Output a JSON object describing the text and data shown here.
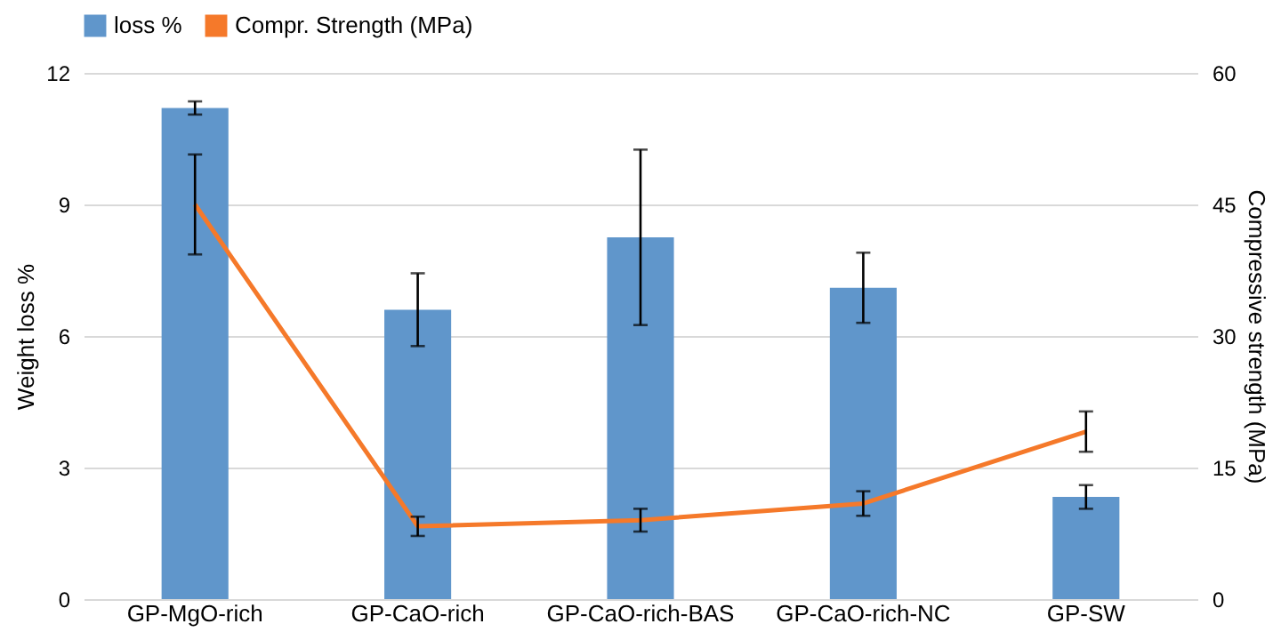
{
  "chart_data": {
    "type": "bar",
    "categories": [
      "GP-MgO-rich",
      "GP-CaO-rich",
      "GP-CaO-rich-BAS",
      "GP-CaO-rich-NC",
      "GP-SW"
    ],
    "ylabel": "Weight loss %",
    "y2label": "Compressive strength (MPa)",
    "series": [
      {
        "name": "loss %",
        "color": "#6096cb",
        "values": [
          11.2,
          6.6,
          8.25,
          7.1,
          2.33
        ],
        "errors": [
          0.15,
          0.83,
          2.0,
          0.8,
          0.27
        ]
      },
      {
        "name": "Compr. Strength (MPa)",
        "type": "line",
        "axis": "y2",
        "color": "#f5792a",
        "values": [
          45.0,
          8.3,
          9.0,
          10.9,
          19.1
        ],
        "errors": [
          5.7,
          1.1,
          1.3,
          1.4,
          2.3
        ]
      }
    ],
    "ylim": [
      0,
      12
    ],
    "yticks": [
      0,
      3,
      6,
      9,
      12
    ],
    "y2lim": [
      0,
      60
    ],
    "y2ticks": [
      0,
      15,
      30,
      45,
      60
    ],
    "grid": "y",
    "legend": "top",
    "marker": "none",
    "line_style": "solid"
  }
}
